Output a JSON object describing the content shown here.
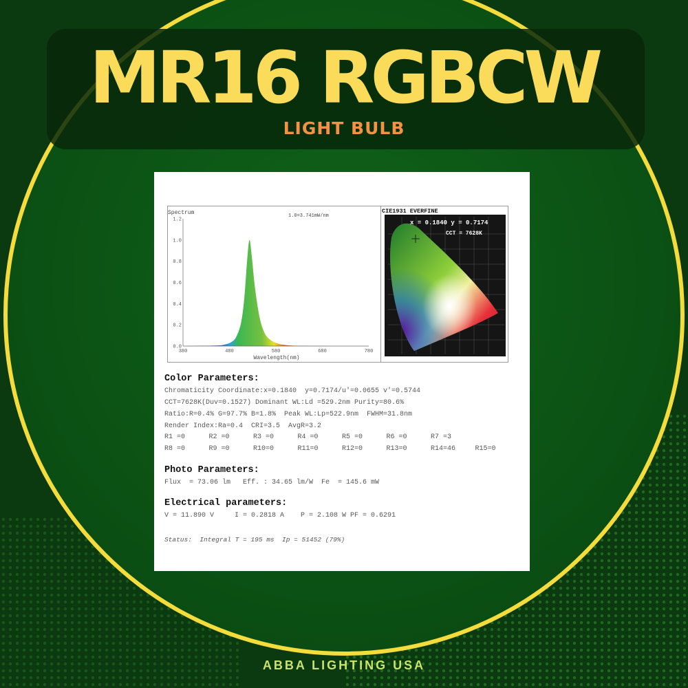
{
  "header": {
    "title": "MR16 RGBCW",
    "subtitle": "LIGHT BULB"
  },
  "footer": {
    "brand": "ABBA LIGHTING USA"
  },
  "colors": {
    "background": "#0d3d12",
    "ring": "#f4dc3c",
    "title": "#fadc5a",
    "subtitle": "#f39245",
    "footer": "#c9e36c"
  },
  "spectrum": {
    "label": "Spectrum",
    "scale_note": "1.0=3.741mW/nm"
  },
  "chart_data": {
    "type": "area",
    "xlabel": "Wavelength(nm)",
    "ylabel": "Spectrum",
    "xlim": [
      380,
      780
    ],
    "ylim": [
      0,
      1.2
    ],
    "xticks": [
      "380",
      "480",
      "580",
      "680",
      "780"
    ],
    "yticks": [
      "0.0",
      "0.2",
      "0.4",
      "0.6",
      "0.8",
      "1.0",
      "1.2"
    ],
    "x": [
      380,
      450,
      470,
      485,
      495,
      505,
      512,
      518,
      523,
      528,
      535,
      545,
      555,
      565,
      580,
      600,
      640,
      780
    ],
    "y": [
      0,
      0.005,
      0.015,
      0.04,
      0.09,
      0.22,
      0.45,
      0.8,
      1.0,
      0.85,
      0.55,
      0.27,
      0.13,
      0.07,
      0.03,
      0.01,
      0.002,
      0
    ],
    "grid": false
  },
  "cie": {
    "title": "CIE1931 EVERFINE",
    "coord": "x = 0.1840 y = 0.7174",
    "cct": "CCT = 7628K"
  },
  "color_params": {
    "heading": "Color Parameters:",
    "lines": [
      "Chromaticity Coordinate:x=0.1840  y=0.7174/u'=0.0655 v'=0.5744",
      "CCT=7628K(Duv=0.1527) Dominant WL:Ld =529.2nm Purity=80.6%",
      "Ratio:R=0.4% G=97.7% B=1.8%  Peak WL:Lp=522.9nm  FWHM=31.8nm",
      "Render Index:Ra=0.4  CRI=3.5  AvgR=3.2"
    ],
    "r_row1": [
      "R1 =0",
      "R2 =0",
      "R3 =0",
      "R4 =0",
      "R5 =0",
      "R6 =0",
      "R7 =3"
    ],
    "r_row2": [
      "R8 =0",
      "R9 =0",
      "R10=0",
      "R11=0",
      "R12=0",
      "R13=0",
      "R14=46",
      "R15=0"
    ]
  },
  "photo_params": {
    "heading": "Photo Parameters:",
    "line": "Flux  = 73.06 lm   Eff. : 34.65 lm/W  Fe  = 145.6 mW"
  },
  "electrical_params": {
    "heading": "Electrical parameters:",
    "line": "V = 11.890 V     I = 0.2818 A    P = 2.108 W PF = 0.6291"
  },
  "status": "Status:  Integral T = 195 ms  Ip = 51452 (79%)"
}
